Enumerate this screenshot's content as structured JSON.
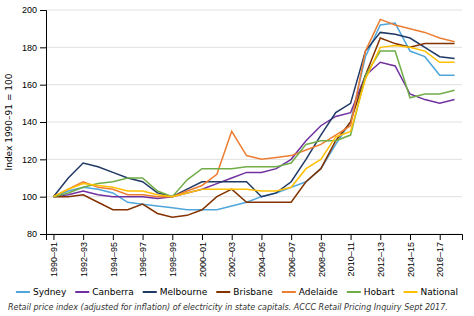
{
  "chart_data": {
    "type": "line",
    "ylabel": "Index 1990–91 = 100",
    "caption": "Retail price index (adjusted for inflation) of electricity in state capitals. ACCC Retail Pricing Inquiry Sept 2017.",
    "categories": [
      "1990–91",
      null,
      "1992–93",
      null,
      "1994–95",
      null,
      "1996–97",
      null,
      "1998–99",
      null,
      "2000–01",
      null,
      "2002–03",
      null,
      "2004–05",
      null,
      "2006–07",
      null,
      "2008–09",
      null,
      "2010–11",
      null,
      "2012–13",
      null,
      "2014–15",
      null,
      "2016–17",
      null
    ],
    "ylim": [
      80,
      200
    ],
    "yticks": [
      80,
      100,
      120,
      140,
      160,
      180,
      200
    ],
    "grid": true,
    "legend": "bottom",
    "series": [
      {
        "name": "Sydney",
        "color": "#4EA6DC",
        "values": [
          100,
          103,
          105,
          104,
          102,
          97,
          96,
          95,
          94,
          93,
          93,
          93,
          95,
          97,
          100,
          102,
          105,
          108,
          115,
          128,
          140,
          175,
          192,
          193,
          178,
          175,
          165,
          165
        ]
      },
      {
        "name": "Canberra",
        "color": "#7030A0",
        "values": [
          100,
          101,
          103,
          101,
          100,
          100,
          100,
          99,
          100,
          102,
          104,
          107,
          110,
          113,
          113,
          115,
          120,
          130,
          138,
          143,
          145,
          165,
          172,
          170,
          155,
          152,
          150,
          152
        ]
      },
      {
        "name": "Melbourne",
        "color": "#1F3864",
        "values": [
          100,
          110,
          118,
          116,
          113,
          110,
          108,
          102,
          100,
          104,
          108,
          108,
          108,
          108,
          100,
          102,
          108,
          120,
          133,
          145,
          150,
          178,
          188,
          187,
          185,
          180,
          175,
          174
        ]
      },
      {
        "name": "Brisbane",
        "color": "#833200",
        "values": [
          100,
          100,
          101,
          97,
          93,
          93,
          96,
          91,
          89,
          90,
          93,
          100,
          104,
          97,
          97,
          97,
          97,
          108,
          115,
          130,
          140,
          165,
          185,
          182,
          180,
          182,
          182,
          182
        ]
      },
      {
        "name": "Adelaide",
        "color": "#ED7D31",
        "values": [
          100,
          104,
          108,
          105,
          104,
          101,
          101,
          100,
          100,
          103,
          106,
          112,
          135,
          122,
          120,
          121,
          122,
          125,
          128,
          133,
          138,
          178,
          195,
          192,
          190,
          188,
          185,
          183
        ]
      },
      {
        "name": "Hobart",
        "color": "#70AD47",
        "values": [
          100,
          102,
          105,
          107,
          108,
          110,
          110,
          103,
          100,
          109,
          115,
          115,
          115,
          116,
          116,
          116,
          118,
          128,
          130,
          130,
          133,
          165,
          178,
          178,
          153,
          155,
          155,
          157
        ]
      },
      {
        "name": "National",
        "color": "#FFC000",
        "values": [
          100,
          104,
          107,
          106,
          105,
          103,
          103,
          101,
          100,
          102,
          104,
          104,
          104,
          104,
          103,
          103,
          105,
          115,
          120,
          132,
          135,
          163,
          180,
          181,
          180,
          178,
          172,
          172
        ]
      }
    ]
  }
}
